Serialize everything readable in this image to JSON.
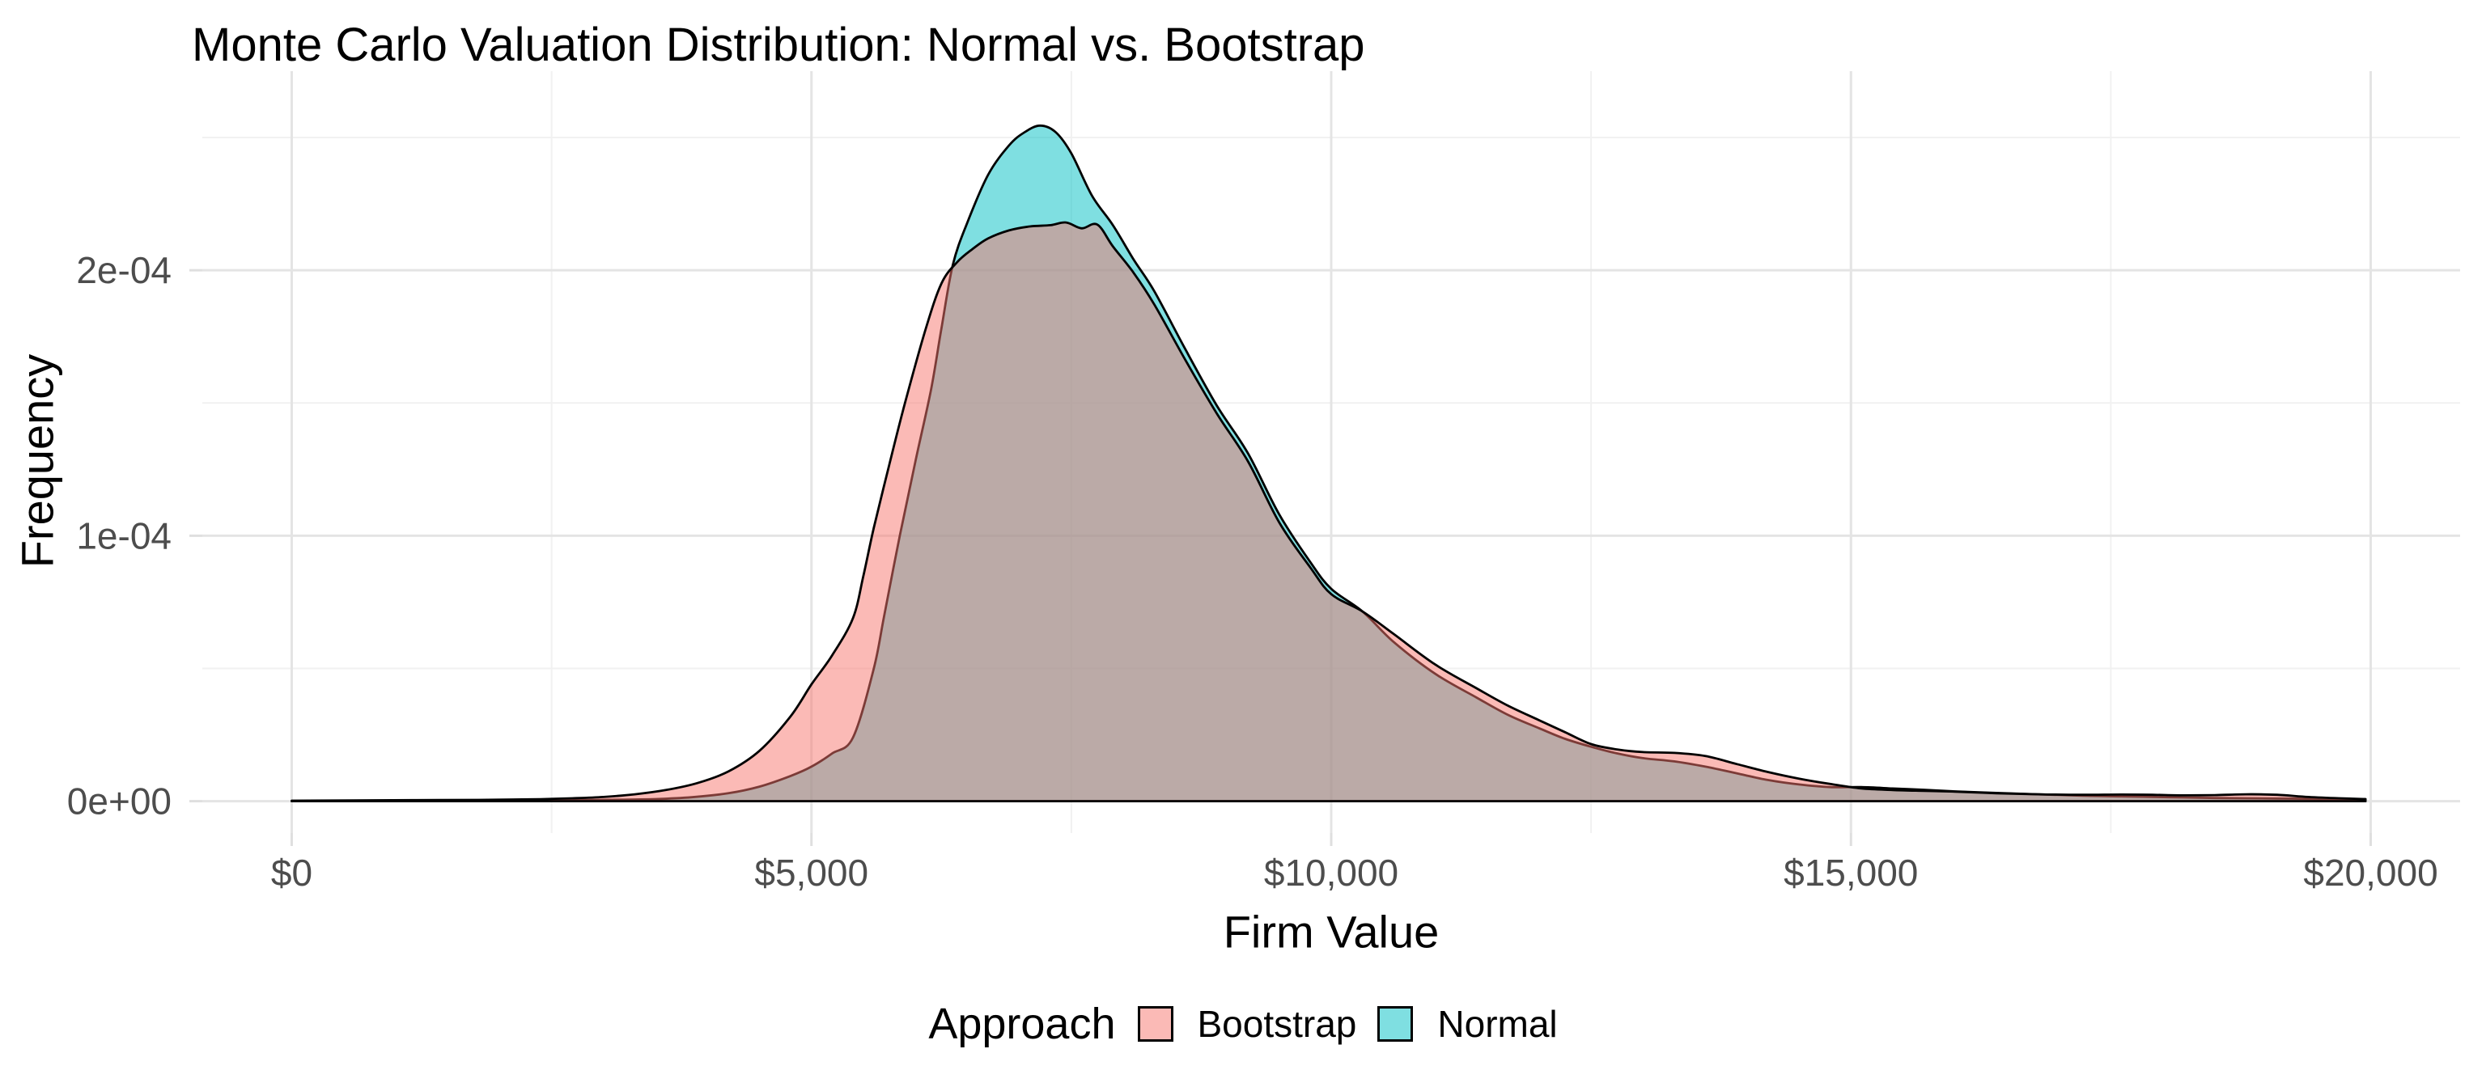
{
  "page": {
    "background": "#FFFFFF"
  },
  "chart_data": {
    "type": "area",
    "subtype": "overlapping_density",
    "title": "Monte Carlo Valuation Distribution: Normal vs. Bootstrap",
    "xlabel": "Firm Value",
    "ylabel": "Frequency",
    "grid": {
      "on": true,
      "major_color": "#E4E4E4",
      "minor_color": "#F1F1F1"
    },
    "axis_text_color": "#4D4D4D",
    "tick_mark_color": "#DFDFDF",
    "outline_color": "#000000",
    "legend": {
      "title": "Approach",
      "position": "bottom",
      "entries": [
        {
          "label": "Bootstrap",
          "color": "#F8766D"
        },
        {
          "label": "Normal",
          "color": "#00BFC4"
        }
      ]
    },
    "x_axis": {
      "range": [
        -860,
        20860
      ],
      "ticks": [
        {
          "value": 0,
          "label": "$0"
        },
        {
          "value": 5000,
          "label": "$5,000"
        },
        {
          "value": 10000,
          "label": "$10,000"
        },
        {
          "value": 15000,
          "label": "$15,000"
        },
        {
          "value": 20000,
          "label": "$20,000"
        }
      ],
      "minor": [
        2500,
        7500,
        12500,
        17500
      ]
    },
    "y_axis": {
      "range": [
        -1.2e-05,
        0.000275
      ],
      "ticks": [
        {
          "value": 0,
          "label": "0e+00"
        },
        {
          "value": 0.0001,
          "label": "1e-04"
        },
        {
          "value": 0.0002,
          "label": "2e-04"
        }
      ],
      "minor": [
        5e-05,
        0.00015,
        0.00025
      ]
    },
    "series": [
      {
        "name": "Bootstrap",
        "fill": "#F8766D",
        "fill_opacity": 0.5,
        "stroke": "#000000",
        "z": 2,
        "peak": {
          "x": 7450,
          "y": 0.000218
        },
        "points": [
          [
            0,
            2e-07
          ],
          [
            600,
            3e-07
          ],
          [
            1200,
            4e-07
          ],
          [
            1800,
            5e-07
          ],
          [
            2300,
            7e-07
          ],
          [
            2700,
            1.1e-06
          ],
          [
            3000,
            1.6e-06
          ],
          [
            3300,
            2.6e-06
          ],
          [
            3600,
            4.2e-06
          ],
          [
            3900,
            6.8e-06
          ],
          [
            4200,
            1.12e-05
          ],
          [
            4500,
            1.9e-05
          ],
          [
            4800,
            3.2e-05
          ],
          [
            5000,
            4.4e-05
          ],
          [
            5200,
            5.5e-05
          ],
          [
            5400,
            6.9e-05
          ],
          [
            5500,
            8.5e-05
          ],
          [
            5600,
            0.000103
          ],
          [
            5750,
            0.000127
          ],
          [
            5900,
            0.00015
          ],
          [
            6100,
            0.000178
          ],
          [
            6250,
            0.000195
          ],
          [
            6400,
            0.000203
          ],
          [
            6550,
            0.000208
          ],
          [
            6700,
            0.000212
          ],
          [
            6900,
            0.000215
          ],
          [
            7100,
            0.0002165
          ],
          [
            7300,
            0.000217
          ],
          [
            7450,
            0.000218
          ],
          [
            7600,
            0.0002158
          ],
          [
            7750,
            0.0002172
          ],
          [
            7900,
            0.000209
          ],
          [
            8100,
            0.000199
          ],
          [
            8300,
            0.000187
          ],
          [
            8600,
            0.000166
          ],
          [
            8900,
            0.000146
          ],
          [
            9200,
            0.000128
          ],
          [
            9500,
            0.000105
          ],
          [
            9800,
            8.8e-05
          ],
          [
            10000,
            7.8e-05
          ],
          [
            10300,
            7.15e-05
          ],
          [
            10600,
            6.3e-05
          ],
          [
            11000,
            5.15e-05
          ],
          [
            11400,
            4.25e-05
          ],
          [
            11700,
            3.6e-05
          ],
          [
            12000,
            3.05e-05
          ],
          [
            12250,
            2.6e-05
          ],
          [
            12500,
            2.15e-05
          ],
          [
            12750,
            1.95e-05
          ],
          [
            13000,
            1.85e-05
          ],
          [
            13300,
            1.82e-05
          ],
          [
            13600,
            1.7e-05
          ],
          [
            13900,
            1.4e-05
          ],
          [
            14200,
            1.1e-05
          ],
          [
            14500,
            8.5e-06
          ],
          [
            14800,
            6.5e-06
          ],
          [
            15100,
            4.8e-06
          ],
          [
            15400,
            4.2e-06
          ],
          [
            15700,
            3.9e-06
          ],
          [
            16000,
            3.6e-06
          ],
          [
            16400,
            3e-06
          ],
          [
            16800,
            2.6e-06
          ],
          [
            17200,
            2.4e-06
          ],
          [
            17600,
            2.5e-06
          ],
          [
            17900,
            2.4e-06
          ],
          [
            18200,
            2.2e-06
          ],
          [
            18500,
            2.3e-06
          ],
          [
            18800,
            2.6e-06
          ],
          [
            19100,
            2.4e-06
          ],
          [
            19400,
            1.6e-06
          ],
          [
            19700,
            1.1e-06
          ],
          [
            19950,
            8e-07
          ]
        ]
      },
      {
        "name": "Normal",
        "fill": "#00BFC4",
        "fill_opacity": 0.5,
        "stroke": "#000000",
        "z": 1,
        "peak": {
          "x": 7200,
          "y": 0.0002545
        },
        "points": [
          [
            0,
            1e-07
          ],
          [
            800,
            1e-07
          ],
          [
            1600,
            2e-07
          ],
          [
            2400,
            3e-07
          ],
          [
            3000,
            5e-07
          ],
          [
            3500,
            8e-07
          ],
          [
            3850,
            1.5e-06
          ],
          [
            4200,
            3e-06
          ],
          [
            4500,
            5.5e-06
          ],
          [
            4800,
            9.5e-06
          ],
          [
            5000,
            1.3e-05
          ],
          [
            5200,
            1.8e-05
          ],
          [
            5400,
            2.4e-05
          ],
          [
            5600,
            5e-05
          ],
          [
            5700,
            7e-05
          ],
          [
            5850,
            0.0001
          ],
          [
            6000,
            0.000128
          ],
          [
            6150,
            0.000155
          ],
          [
            6250,
            0.000178
          ],
          [
            6360,
            0.000202
          ],
          [
            6500,
            0.000218
          ],
          [
            6700,
            0.000236
          ],
          [
            6900,
            0.000247
          ],
          [
            7050,
            0.000252
          ],
          [
            7200,
            0.0002545
          ],
          [
            7350,
            0.000252
          ],
          [
            7500,
            0.000244
          ],
          [
            7700,
            0.000228
          ],
          [
            7900,
            0.000217
          ],
          [
            8100,
            0.000204
          ],
          [
            8300,
            0.000192
          ],
          [
            8600,
            0.00017
          ],
          [
            8900,
            0.000149
          ],
          [
            9200,
            0.000131
          ],
          [
            9500,
            0.000108
          ],
          [
            9800,
            9e-05
          ],
          [
            10000,
            8e-05
          ],
          [
            10300,
            7.15e-05
          ],
          [
            10600,
            6e-05
          ],
          [
            11000,
            4.8e-05
          ],
          [
            11400,
            3.9e-05
          ],
          [
            11700,
            3.25e-05
          ],
          [
            12000,
            2.75e-05
          ],
          [
            12250,
            2.35e-05
          ],
          [
            12500,
            2.05e-05
          ],
          [
            12750,
            1.8e-05
          ],
          [
            13000,
            1.62e-05
          ],
          [
            13300,
            1.5e-05
          ],
          [
            13600,
            1.3e-05
          ],
          [
            13900,
            1.05e-05
          ],
          [
            14200,
            8e-06
          ],
          [
            14500,
            6.3e-06
          ],
          [
            14800,
            5.3e-06
          ],
          [
            15100,
            5.3e-06
          ],
          [
            15400,
            4.8e-06
          ],
          [
            15700,
            4.3e-06
          ],
          [
            16000,
            3.7e-06
          ],
          [
            16400,
            3.1e-06
          ],
          [
            16800,
            2.6e-06
          ],
          [
            17200,
            2.1e-06
          ],
          [
            17600,
            1.8e-06
          ],
          [
            17900,
            1.6e-06
          ],
          [
            18200,
            1.4e-06
          ],
          [
            18500,
            1.2e-06
          ],
          [
            18800,
            1.1e-06
          ],
          [
            19100,
            1e-06
          ],
          [
            19400,
            9e-07
          ],
          [
            19700,
            8e-07
          ],
          [
            19950,
            7e-07
          ]
        ]
      }
    ]
  }
}
